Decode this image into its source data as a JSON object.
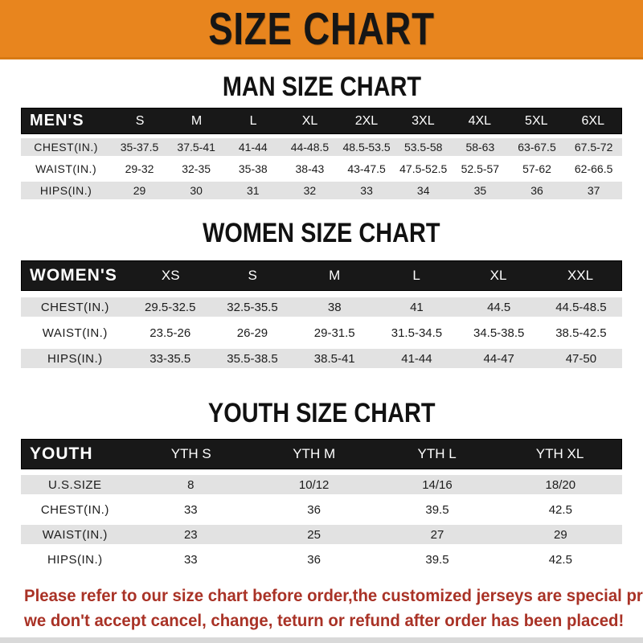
{
  "banner": {
    "title": "SIZE CHART",
    "bg_color": "#E8851E",
    "text_color": "#161616"
  },
  "chart_data": [
    {
      "type": "table",
      "id": "men",
      "section_title": "MAN SIZE CHART",
      "corner_label": "MEN'S",
      "columns": [
        "S",
        "M",
        "L",
        "XL",
        "2XL",
        "3XL",
        "4XL",
        "5XL",
        "6XL"
      ],
      "rows": [
        {
          "label": "CHEST(IN.)",
          "values": [
            "35-37.5",
            "37.5-41",
            "41-44",
            "44-48.5",
            "48.5-53.5",
            "53.5-58",
            "58-63",
            "63-67.5",
            "67.5-72"
          ]
        },
        {
          "label": "WAIST(IN.)",
          "values": [
            "29-32",
            "32-35",
            "35-38",
            "38-43",
            "43-47.5",
            "47.5-52.5",
            "52.5-57",
            "57-62",
            "62-66.5"
          ]
        },
        {
          "label": "HIPS(IN.)",
          "values": [
            "29",
            "30",
            "31",
            "32",
            "33",
            "34",
            "35",
            "36",
            "37"
          ]
        }
      ]
    },
    {
      "type": "table",
      "id": "women",
      "section_title": "WOMEN SIZE CHART",
      "corner_label": "WOMEN'S",
      "columns": [
        "XS",
        "S",
        "M",
        "L",
        "XL",
        "XXL"
      ],
      "rows": [
        {
          "label": "CHEST(IN.)",
          "values": [
            "29.5-32.5",
            "32.5-35.5",
            "38",
            "41",
            "44.5",
            "44.5-48.5"
          ]
        },
        {
          "label": "WAIST(IN.)",
          "values": [
            "23.5-26",
            "26-29",
            "29-31.5",
            "31.5-34.5",
            "34.5-38.5",
            "38.5-42.5"
          ]
        },
        {
          "label": "HIPS(IN.)",
          "values": [
            "33-35.5",
            "35.5-38.5",
            "38.5-41",
            "41-44",
            "44-47",
            "47-50"
          ]
        }
      ]
    },
    {
      "type": "table",
      "id": "youth",
      "section_title": "YOUTH SIZE CHART",
      "corner_label": "YOUTH",
      "columns": [
        "YTH S",
        "YTH M",
        "YTH L",
        "YTH XL"
      ],
      "rows": [
        {
          "label": "U.S.SIZE",
          "values": [
            "8",
            "10/12",
            "14/16",
            "18/20"
          ]
        },
        {
          "label": "CHEST(IN.)",
          "values": [
            "33",
            "36",
            "39.5",
            "42.5"
          ]
        },
        {
          "label": "WAIST(IN.)",
          "values": [
            "23",
            "25",
            "27",
            "29"
          ]
        },
        {
          "label": "HIPS(IN.)",
          "values": [
            "33",
            "36",
            "39.5",
            "42.5"
          ]
        }
      ]
    }
  ],
  "footer": {
    "line1": "Please refer to our size chart before order,the customized jerseys are special products,",
    "line2": "we don't accept cancel, change, teturn or refund after order has been placed!",
    "text_color": "#A93226"
  },
  "colors": {
    "banner_orange": "#E8851E",
    "table_header_black": "#181818",
    "row_gray": "#E2E2E2",
    "row_white": "#FFFFFF",
    "note_red": "#A93226"
  }
}
